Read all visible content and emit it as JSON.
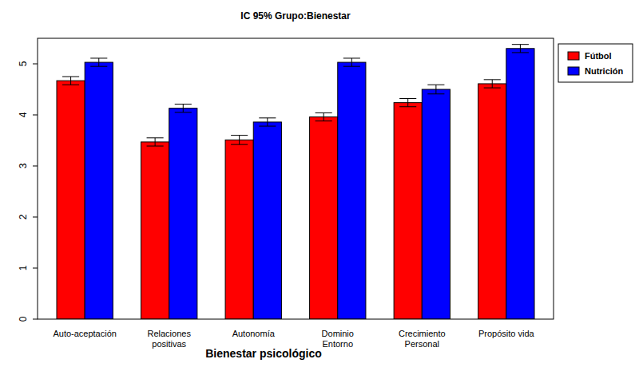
{
  "chart_data": {
    "type": "bar",
    "title": "IC 95% Grupo:Bienestar",
    "x_label": "Bienestar psicológico",
    "categories": [
      "Auto-aceptación",
      "Relaciones\npositivas",
      "Autonomía",
      "Dominio\nEntorno",
      "Crecimiento\nPersonal",
      "Propósito vida"
    ],
    "series": [
      {
        "name": "Fútbol",
        "color": "#ff0000",
        "values": [
          4.67,
          3.47,
          3.51,
          3.96,
          4.24,
          4.61
        ],
        "errors": [
          0.08,
          0.08,
          0.09,
          0.08,
          0.08,
          0.08
        ]
      },
      {
        "name": "Nutrición",
        "color": "#0000ff",
        "values": [
          5.03,
          4.13,
          3.86,
          5.03,
          4.5,
          5.3
        ],
        "errors": [
          0.08,
          0.08,
          0.08,
          0.08,
          0.09,
          0.08
        ]
      }
    ],
    "ylim": [
      0,
      5.5
    ],
    "yticks": [
      0,
      1,
      2,
      3,
      4,
      5
    ],
    "grid": false,
    "legend": "topright"
  }
}
